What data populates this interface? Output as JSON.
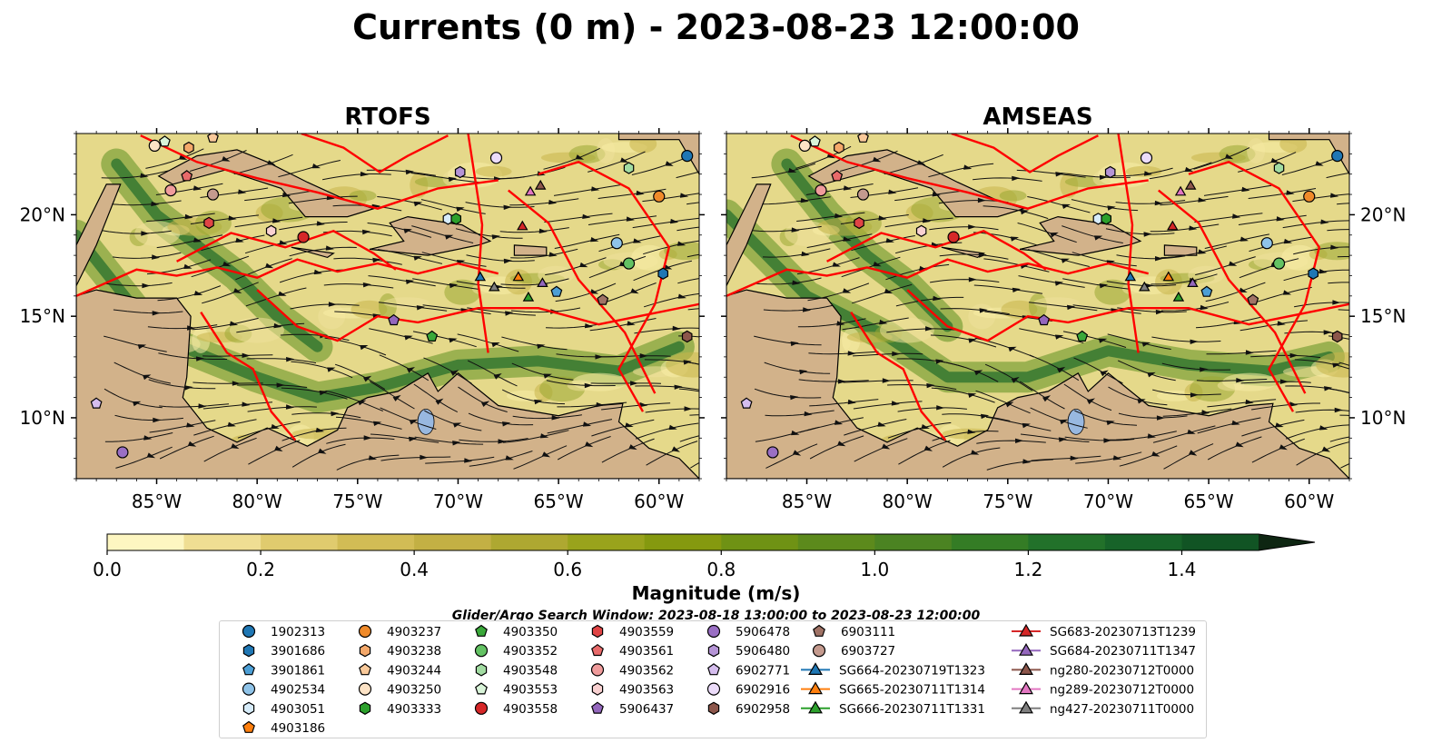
{
  "title": "Currents (0 m) - 2023-08-23 12:00:00",
  "chart_data": [
    {
      "type": "heatmap",
      "title": "RTOFS",
      "xlim": [
        -89,
        -58
      ],
      "ylim": [
        7,
        24
      ],
      "xticks": [
        {
          "v": -85,
          "label": "85°W"
        },
        {
          "v": -80,
          "label": "80°W"
        },
        {
          "v": -75,
          "label": "75°W"
        },
        {
          "v": -70,
          "label": "70°W"
        },
        {
          "v": -65,
          "label": "65°W"
        },
        {
          "v": -60,
          "label": "60°W"
        }
      ],
      "yticks": [
        {
          "v": 10,
          "label": "10°N"
        },
        {
          "v": 15,
          "label": "15°N"
        },
        {
          "v": 20,
          "label": "20°N"
        }
      ]
    },
    {
      "type": "heatmap",
      "title": "AMSEAS",
      "xlim": [
        -89,
        -58
      ],
      "ylim": [
        7,
        24
      ],
      "xticks": [
        {
          "v": -85,
          "label": "85°W"
        },
        {
          "v": -80,
          "label": "80°W"
        },
        {
          "v": -75,
          "label": "75°W"
        },
        {
          "v": -70,
          "label": "70°W"
        },
        {
          "v": -65,
          "label": "65°W"
        },
        {
          "v": -60,
          "label": "60°W"
        }
      ],
      "yticks": [
        {
          "v": 10,
          "label": "10°N"
        },
        {
          "v": 15,
          "label": "15°N"
        },
        {
          "v": 20,
          "label": "20°N"
        }
      ]
    }
  ],
  "colorbar": {
    "label": "Magnitude (m/s)",
    "min": 0.0,
    "max": 1.5,
    "extend": "max",
    "ticks": [
      {
        "v": 0.0,
        "label": "0.0"
      },
      {
        "v": 0.2,
        "label": "0.2"
      },
      {
        "v": 0.4,
        "label": "0.4"
      },
      {
        "v": 0.6,
        "label": "0.6"
      },
      {
        "v": 0.8,
        "label": "0.8"
      },
      {
        "v": 1.0,
        "label": "1.0"
      },
      {
        "v": 1.2,
        "label": "1.2"
      },
      {
        "v": 1.4,
        "label": "1.4"
      }
    ],
    "colors": [
      "#fdf6c1",
      "#efde93",
      "#e0cb6e",
      "#d2bc55",
      "#c3b044",
      "#aea831",
      "#99a31c",
      "#85990f",
      "#6f9214",
      "#5c8a1c",
      "#4b8322",
      "#347c25",
      "#22712a",
      "#176329",
      "#115424",
      "#0e461e",
      "#0d3618",
      "#0e2612"
    ]
  },
  "search_window": "Glider/Argo Search Window: 2023-08-18 13:00:00 to 2023-08-23 12:00:00",
  "legend": {
    "columns": [
      [
        {
          "label": "1902313",
          "marker": "circle",
          "color": "#1f77b4"
        },
        {
          "label": "3901686",
          "marker": "hexagon",
          "color": "#1f77b4"
        },
        {
          "label": "3901861",
          "marker": "pentagon",
          "color": "#4c9fd6"
        },
        {
          "label": "4902534",
          "marker": "circle",
          "color": "#8fc3e8"
        },
        {
          "label": "4903051",
          "marker": "hexagon",
          "color": "#d7ecfa"
        },
        {
          "label": "4903186",
          "marker": "pentagon",
          "color": "#ff7f0e"
        }
      ],
      [
        {
          "label": "4903237",
          "marker": "circle",
          "color": "#ef8a2a"
        },
        {
          "label": "4903238",
          "marker": "hexagon",
          "color": "#f4a86a"
        },
        {
          "label": "4903244",
          "marker": "pentagon",
          "color": "#f9c99a"
        },
        {
          "label": "4903250",
          "marker": "circle",
          "color": "#fde3c6"
        },
        {
          "label": "4903333",
          "marker": "hexagon",
          "color": "#2ca02c"
        }
      ],
      [
        {
          "label": "4903350",
          "marker": "pentagon",
          "color": "#3aa83a"
        },
        {
          "label": "4903352",
          "marker": "circle",
          "color": "#63c263"
        },
        {
          "label": "4903548",
          "marker": "hexagon",
          "color": "#a2dca2"
        },
        {
          "label": "4903553",
          "marker": "pentagon",
          "color": "#d9f4d9"
        },
        {
          "label": "4903558",
          "marker": "circle",
          "color": "#d62728"
        }
      ],
      [
        {
          "label": "4903559",
          "marker": "hexagon",
          "color": "#e04445"
        },
        {
          "label": "4903561",
          "marker": "pentagon",
          "color": "#e86a6a"
        },
        {
          "label": "4903562",
          "marker": "circle",
          "color": "#f09c9c"
        },
        {
          "label": "4903563",
          "marker": "hexagon",
          "color": "#f9d1d1"
        },
        {
          "label": "5906437",
          "marker": "pentagon",
          "color": "#9467bd"
        }
      ],
      [
        {
          "label": "5906478",
          "marker": "circle",
          "color": "#9a6fc4"
        },
        {
          "label": "5906480",
          "marker": "hexagon",
          "color": "#b594d6"
        },
        {
          "label": "6902771",
          "marker": "pentagon",
          "color": "#d5bdee"
        },
        {
          "label": "6902916",
          "marker": "circle",
          "color": "#ecdcfa"
        },
        {
          "label": "6902958",
          "marker": "hexagon",
          "color": "#8c564b"
        }
      ],
      [
        {
          "label": "6903111",
          "marker": "pentagon",
          "color": "#a07366"
        },
        {
          "label": "6903727",
          "marker": "circle",
          "color": "#c49a8e"
        },
        {
          "label": "SG664-20230719T1323",
          "marker": "triangle",
          "color": "#1f77b4",
          "line": true
        },
        {
          "label": "SG665-20230711T1314",
          "marker": "triangle",
          "color": "#ff7f0e",
          "line": true
        },
        {
          "label": "SG666-20230711T1331",
          "marker": "triangle",
          "color": "#2ca02c",
          "line": true
        }
      ],
      [
        {
          "label": "SG683-20230713T1239",
          "marker": "triangle",
          "color": "#d62728",
          "line": true
        },
        {
          "label": "SG684-20230711T1347",
          "marker": "triangle",
          "color": "#9467bd",
          "line": true
        },
        {
          "label": "ng280-20230712T0000",
          "marker": "triangle",
          "color": "#8c564b",
          "line": true
        },
        {
          "label": "ng289-20230712T0000",
          "marker": "triangle",
          "color": "#e377c2",
          "line": true
        },
        {
          "label": "ng427-20230711T0000",
          "marker": "triangle",
          "color": "#7f7f7f",
          "line": true
        }
      ]
    ]
  },
  "markers": [
    {
      "id": "1902313",
      "lon": -58.6,
      "lat": 22.9
    },
    {
      "id": "3901686",
      "lon": -59.8,
      "lat": 17.1
    },
    {
      "id": "3901861",
      "lon": -65.1,
      "lat": 16.2
    },
    {
      "id": "4902534",
      "lon": -62.1,
      "lat": 18.6
    },
    {
      "id": "4903051",
      "lon": -70.5,
      "lat": 19.8
    },
    {
      "id": "4903237",
      "lon": -60.0,
      "lat": 20.9
    },
    {
      "id": "4903238",
      "lon": -83.4,
      "lat": 23.3
    },
    {
      "id": "4903244",
      "lon": -82.2,
      "lat": 23.8
    },
    {
      "id": "4903250",
      "lon": -85.1,
      "lat": 23.4
    },
    {
      "id": "4903333",
      "lon": -70.1,
      "lat": 19.8
    },
    {
      "id": "4903350",
      "lon": -71.3,
      "lat": 14.0
    },
    {
      "id": "4903352",
      "lon": -61.5,
      "lat": 17.6
    },
    {
      "id": "4903548",
      "lon": -61.5,
      "lat": 22.3
    },
    {
      "id": "4903553",
      "lon": -84.6,
      "lat": 23.6
    },
    {
      "id": "4903558",
      "lon": -77.7,
      "lat": 18.9
    },
    {
      "id": "4903559",
      "lon": -82.4,
      "lat": 19.6
    },
    {
      "id": "4903561",
      "lon": -83.5,
      "lat": 21.9
    },
    {
      "id": "4903562",
      "lon": -84.3,
      "lat": 21.2
    },
    {
      "id": "4903563",
      "lon": -79.3,
      "lat": 19.2
    },
    {
      "id": "5906437",
      "lon": -73.2,
      "lat": 14.8
    },
    {
      "id": "5906478",
      "lon": -86.7,
      "lat": 8.3
    },
    {
      "id": "5906480",
      "lon": -69.9,
      "lat": 22.1
    },
    {
      "id": "6902771",
      "lon": -88.0,
      "lat": 10.7
    },
    {
      "id": "6902916",
      "lon": -68.1,
      "lat": 22.8
    },
    {
      "id": "6902958",
      "lon": -58.6,
      "lat": 14.0
    },
    {
      "id": "6903111",
      "lon": -62.8,
      "lat": 15.8
    },
    {
      "id": "6903727",
      "lon": -82.2,
      "lat": 21.0
    },
    {
      "id": "SG664-20230719T1323",
      "lon": -68.9,
      "lat": 16.9
    },
    {
      "id": "SG665-20230711T1314",
      "lon": -67.0,
      "lat": 16.9
    },
    {
      "id": "SG666-20230711T1331",
      "lon": -66.5,
      "lat": 15.9
    },
    {
      "id": "SG683-20230713T1239",
      "lon": -66.8,
      "lat": 19.4
    },
    {
      "id": "SG684-20230711T1347",
      "lon": -65.8,
      "lat": 16.6
    },
    {
      "id": "ng280-20230712T0000",
      "lon": -65.9,
      "lat": 21.4
    },
    {
      "id": "ng289-20230712T0000",
      "lon": -66.4,
      "lat": 21.1
    },
    {
      "id": "ng427-20230711T0000",
      "lon": -68.2,
      "lat": 16.4
    }
  ]
}
